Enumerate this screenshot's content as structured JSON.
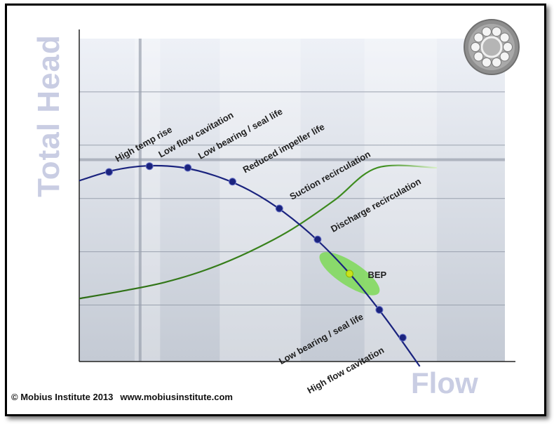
{
  "chart_data": {
    "type": "line",
    "xlabel": "Flow",
    "ylabel": "Total Head",
    "xlim": [
      0,
      100
    ],
    "ylim": [
      0,
      100
    ],
    "series": [
      {
        "color": "#1a237e",
        "x": [
          0,
          8,
          16,
          24,
          32,
          40,
          48,
          56,
          64,
          72,
          80
        ],
        "y": [
          56.0,
          59.2,
          60.6,
          60.1,
          57.5,
          53.0,
          46.3,
          37.5,
          26.5,
          13.3,
          -1.5
        ]
      },
      {
        "color": "#2e7d1a",
        "x": [
          0,
          10,
          20,
          30,
          40,
          50,
          60,
          70,
          84
        ],
        "y": [
          19.5,
          21.8,
          24.5,
          28.5,
          34.0,
          41.0,
          50.0,
          60.0,
          60.0
        ]
      }
    ],
    "points": [
      {
        "label": "High temp rise",
        "x": 7,
        "y": 58.7
      },
      {
        "label": "Low flow cavitation",
        "x": 16.5,
        "y": 60.5
      },
      {
        "label": "Low bearing / seal life",
        "x": 25.5,
        "y": 60.0
      },
      {
        "label": "Reduced impeller life",
        "x": 36,
        "y": 55.7
      },
      {
        "label": "Suction recirculation",
        "x": 47,
        "y": 47.4
      },
      {
        "label": "Discharge recirculation",
        "x": 56,
        "y": 37.8
      },
      {
        "label": "BEP",
        "x": 63.5,
        "y": 27.2
      },
      {
        "label": "Low bearing / seal life",
        "x": 70.5,
        "y": 16.0
      },
      {
        "label": "High flow cavitation",
        "x": 76,
        "y": 7.4
      }
    ],
    "colors": {
      "head_curve": "#1a237e",
      "system_curve": "#2e7d1a",
      "bep_region": "#7ed957",
      "axis_title": "#c9cde3"
    }
  },
  "footer": {
    "copyright": "© Mobius Institute 2013",
    "website": "www.mobiusinstitute.com"
  },
  "logo_icon": "bearing-icon"
}
